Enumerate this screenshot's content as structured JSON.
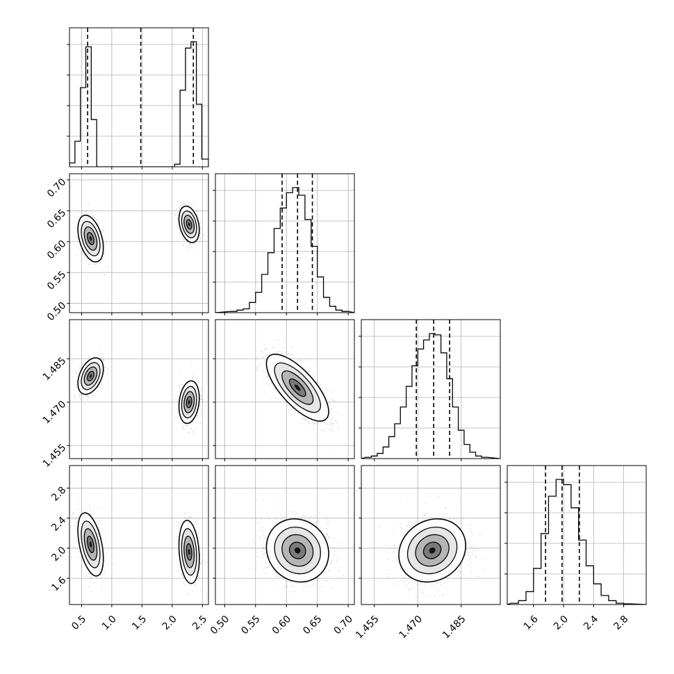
{
  "chart_data": {
    "type": "corner",
    "grid": true,
    "parameters": [
      {
        "range": [
          0.3,
          2.6
        ],
        "ticks": [
          0.5,
          1.0,
          1.5,
          2.0,
          2.5
        ],
        "tick_labels": [
          "0.5",
          "1.0",
          "1.5",
          "2.0",
          "2.5"
        ],
        "quantiles": [
          0.6,
          1.48,
          2.35
        ],
        "histogram": {
          "bin_edges": [
            0.3,
            0.39,
            0.48,
            0.57,
            0.66,
            0.75,
            0.84,
            0.93,
            2.04,
            2.13,
            2.22,
            2.31,
            2.4,
            2.49,
            2.6
          ],
          "counts": [
            0.03,
            0.2,
            0.62,
            0.94,
            0.37,
            0.0,
            0.0,
            0.0,
            0.02,
            0.6,
            0.93,
            0.98,
            0.49,
            0.06
          ]
        }
      },
      {
        "range": [
          0.485,
          0.71
        ],
        "ticks": [
          0.5,
          0.55,
          0.6,
          0.65,
          0.7
        ],
        "tick_labels": [
          "0.50",
          "0.55",
          "0.60",
          "0.65",
          "0.70"
        ],
        "quantiles": [
          0.593,
          0.618,
          0.642
        ],
        "histogram": {
          "bin_edges": [
            0.51,
            0.52,
            0.53,
            0.54,
            0.55,
            0.56,
            0.57,
            0.58,
            0.59,
            0.6,
            0.61,
            0.62,
            0.63,
            0.64,
            0.65,
            0.66,
            0.67,
            0.68,
            0.69,
            0.7
          ],
          "counts": [
            0.01,
            0.02,
            0.03,
            0.08,
            0.16,
            0.3,
            0.47,
            0.66,
            0.82,
            0.94,
            0.98,
            0.92,
            0.73,
            0.52,
            0.28,
            0.12,
            0.05,
            0.02,
            0.01
          ]
        }
      },
      {
        "range": [
          1.4505,
          1.4985
        ],
        "ticks": [
          1.455,
          1.47,
          1.485
        ],
        "tick_labels": [
          "1.455",
          "1.470",
          "1.485"
        ],
        "quantiles": [
          1.4695,
          1.4755,
          1.481
        ],
        "histogram": {
          "bin_edges": [
            1.452,
            1.454,
            1.456,
            1.458,
            1.46,
            1.462,
            1.464,
            1.466,
            1.468,
            1.47,
            1.472,
            1.474,
            1.476,
            1.478,
            1.48,
            1.482,
            1.484,
            1.486,
            1.488,
            1.49,
            1.492,
            1.494
          ],
          "counts": [
            0.01,
            0.02,
            0.04,
            0.09,
            0.17,
            0.27,
            0.4,
            0.56,
            0.72,
            0.85,
            0.92,
            0.97,
            0.96,
            0.82,
            0.62,
            0.4,
            0.22,
            0.11,
            0.05,
            0.02,
            0.01
          ]
        }
      },
      {
        "range": [
          1.25,
          3.1
        ],
        "ticks": [
          1.6,
          2.0,
          2.4,
          2.8
        ],
        "tick_labels": [
          "1.6",
          "2.0",
          "2.4",
          "2.8"
        ],
        "quantiles": [
          1.76,
          1.98,
          2.21
        ],
        "histogram": {
          "bin_edges": [
            1.3,
            1.4,
            1.5,
            1.6,
            1.7,
            1.8,
            1.9,
            2.0,
            2.1,
            2.2,
            2.3,
            2.4,
            2.5,
            2.6,
            2.7,
            2.8,
            2.9
          ],
          "counts": [
            0.01,
            0.03,
            0.1,
            0.28,
            0.55,
            0.84,
            0.97,
            0.93,
            0.75,
            0.5,
            0.3,
            0.16,
            0.07,
            0.03,
            0.01,
            0.005
          ]
        }
      }
    ],
    "pairs": [
      {
        "row": 1,
        "col": 0,
        "clusters": [
          {
            "mean": [
              0.65,
              0.605
            ],
            "sd": [
              0.1,
              0.018
            ],
            "rho": -0.4,
            "weight": 0.45
          },
          {
            "mean": [
              2.28,
              0.628
            ],
            "sd": [
              0.08,
              0.014
            ],
            "rho": -0.3,
            "weight": 0.55
          }
        ]
      },
      {
        "row": 2,
        "col": 0,
        "clusters": [
          {
            "mean": [
              0.65,
              1.479
            ],
            "sd": [
              0.1,
              0.003
            ],
            "rho": 0.4,
            "weight": 0.45
          },
          {
            "mean": [
              2.28,
              1.47
            ],
            "sd": [
              0.08,
              0.0035
            ],
            "rho": 0.2,
            "weight": 0.55
          }
        ]
      },
      {
        "row": 2,
        "col": 1,
        "clusters": [
          {
            "mean": [
              0.618,
              1.475
            ],
            "sd": [
              0.024,
              0.0055
            ],
            "rho": -0.72,
            "weight": 1.0
          }
        ]
      },
      {
        "row": 3,
        "col": 0,
        "clusters": [
          {
            "mean": [
              0.65,
              2.05
            ],
            "sd": [
              0.1,
              0.2
            ],
            "rho": -0.45,
            "weight": 0.45
          },
          {
            "mean": [
              2.28,
              1.95
            ],
            "sd": [
              0.08,
              0.2
            ],
            "rho": -0.2,
            "weight": 0.55
          }
        ]
      },
      {
        "row": 3,
        "col": 1,
        "clusters": [
          {
            "mean": [
              0.618,
              1.97
            ],
            "sd": [
              0.024,
              0.2
            ],
            "rho": -0.1,
            "weight": 1.0
          }
        ]
      },
      {
        "row": 3,
        "col": 2,
        "clusters": [
          {
            "mean": [
              1.475,
              1.97
            ],
            "sd": [
              0.0055,
              0.2
            ],
            "rho": 0.15,
            "weight": 1.0
          }
        ]
      }
    ]
  }
}
